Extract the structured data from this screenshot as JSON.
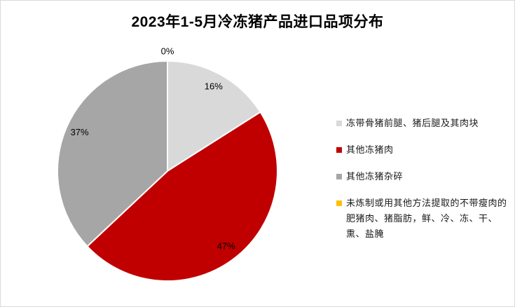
{
  "title": "2023年1-5月冷冻猪产品进口品项分布",
  "chart_data": {
    "type": "pie",
    "title": "2023年1-5月冷冻猪产品进口品项分布",
    "categories": [
      "冻带骨猪前腿、猪后腿及其肉块",
      "其他冻猪肉",
      "其他冻猪杂碎",
      "未炼制或用其他方法提取的不带瘦肉的肥猪肉、猪脂肪，鲜、冷、冻、干、熏、盐腌"
    ],
    "values": [
      16,
      47,
      37,
      0
    ],
    "data_labels": [
      "16%",
      "47%",
      "37%",
      "0%"
    ],
    "unit": "%",
    "colors": [
      "#d9d9d9",
      "#c00000",
      "#a6a6a6",
      "#ffc000"
    ],
    "start_angle_deg": 0,
    "direction": "clockwise",
    "slice_border_color": "#ffffff",
    "legend_position": "right"
  },
  "legend": {
    "items": [
      {
        "label": "冻带骨猪前腿、猪后腿及其肉块",
        "color": "#d9d9d9"
      },
      {
        "label": "其他冻猪肉",
        "color": "#c00000"
      },
      {
        "label": "其他冻猪杂碎",
        "color": "#a6a6a6"
      },
      {
        "label": "未炼制或用其他方法提取的不带瘦肉的肥猪肉、猪脂肪，鲜、冷、冻、干、熏、盐腌",
        "color": "#ffc000"
      }
    ]
  }
}
